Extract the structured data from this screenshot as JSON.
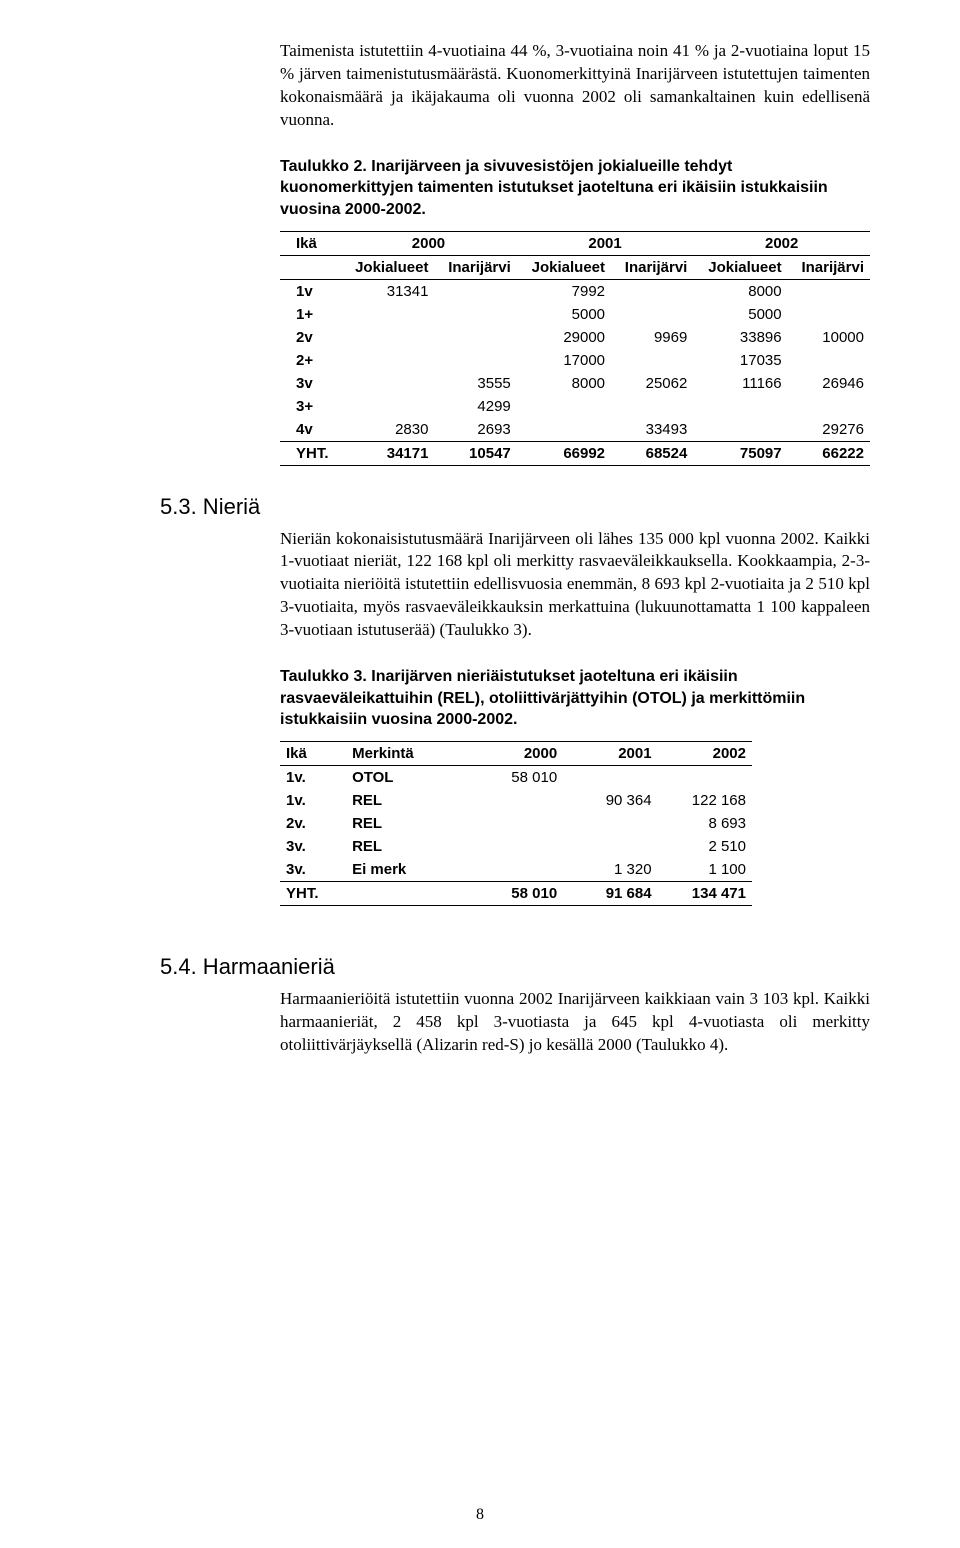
{
  "para1": "Taimenista istutettiin 4-vuotiaina 44 %, 3-vuotiaina noin 41 % ja 2-vuotiaina loput 15 % järven taimenistutusmäärästä. Kuonomerkittyinä Inarijärveen istutettujen taimenten kokonaismäärä ja ikäjakauma oli vuonna 2002 oli samankaltainen kuin edellisenä vuonna.",
  "table2_title": "Taulukko 2. Inarijärveen ja sivuvesistöjen jokialueille tehdyt kuonomerkittyjen taimenten istutukset jaoteltuna eri ikäisiin istukkaisiin vuosina 2000-2002.",
  "table2": {
    "hdr_ika": "Ikä",
    "years": [
      "2000",
      "2001",
      "2002"
    ],
    "sub": [
      "Jokialueet",
      "Inarijärvi",
      "Jokialueet",
      "Inarijärvi",
      "Jokialueet",
      "Inarijärvi"
    ],
    "rows": [
      {
        "age": "1v",
        "c": [
          "31341",
          "",
          "7992",
          "",
          "8000",
          ""
        ]
      },
      {
        "age": "1+",
        "c": [
          "",
          "",
          "5000",
          "",
          "5000",
          ""
        ]
      },
      {
        "age": "2v",
        "c": [
          "",
          "",
          "29000",
          "9969",
          "33896",
          "10000"
        ]
      },
      {
        "age": "2+",
        "c": [
          "",
          "",
          "17000",
          "",
          "17035",
          ""
        ]
      },
      {
        "age": "3v",
        "c": [
          "",
          "3555",
          "8000",
          "25062",
          "11166",
          "26946"
        ]
      },
      {
        "age": "3+",
        "c": [
          "",
          "4299",
          "",
          "",
          "",
          ""
        ]
      },
      {
        "age": "4v",
        "c": [
          "2830",
          "2693",
          "",
          "33493",
          "",
          "29276"
        ]
      }
    ],
    "yht": {
      "label": "YHT.",
      "c": [
        "34171",
        "10547",
        "66992",
        "68524",
        "75097",
        "66222"
      ]
    }
  },
  "section53": "5.3. Nieriä",
  "para53a": "Nieriän kokonaisistutusmäärä Inarijärveen oli lähes 135 000 kpl vuonna 2002. Kaikki 1-vuotiaat nieriät, 122 168 kpl oli merkitty rasvaeväleikkauksella. Kookkaampia, 2-3-vuotiaita nieriöitä istutettiin edellisvuosia enemmän, 8 693 kpl 2-vuotiaita ja 2 510 kpl 3-vuotiaita, myös rasvaeväleikkauksin merkattuina (lukuunottamatta 1 100 kappaleen 3-vuotiaan istutuserää) (Taulukko 3).",
  "table3_title": "Taulukko 3. Inarijärven nieriäistutukset jaoteltuna eri ikäisiin rasvaeväleikattuihin (REL), otoliittivärjättyihin (OTOL) ja merkittömiin istukkaisiin vuosina 2000-2002.",
  "table3": {
    "hdr": [
      "Ikä",
      "Merkintä",
      "2000",
      "2001",
      "2002"
    ],
    "rows": [
      {
        "c": [
          "1v.",
          "OTOL",
          "58 010",
          "",
          ""
        ]
      },
      {
        "c": [
          "1v.",
          "REL",
          "",
          "90 364",
          "122 168"
        ]
      },
      {
        "c": [
          "2v.",
          "REL",
          "",
          "",
          "8 693"
        ]
      },
      {
        "c": [
          "3v.",
          "REL",
          "",
          "",
          "2 510"
        ]
      },
      {
        "c": [
          "3v.",
          "Ei merk",
          "",
          "1 320",
          "1 100"
        ]
      }
    ],
    "yht": {
      "c": [
        "YHT.",
        "",
        "58 010",
        "91 684",
        "134 471"
      ]
    }
  },
  "section54": "5.4. Harmaanieriä",
  "para54": "Harmaanieriöitä istutettiin vuonna 2002 Inarijärveen kaikkiaan vain 3 103 kpl. Kaikki harmaanieriät, 2 458 kpl 3-vuotiasta ja 645 kpl 4-vuotiasta oli merkitty otoliittivärjäyksellä (Alizarin red-S) jo kesällä 2000 (Taulukko 4).",
  "pagenum": "8"
}
